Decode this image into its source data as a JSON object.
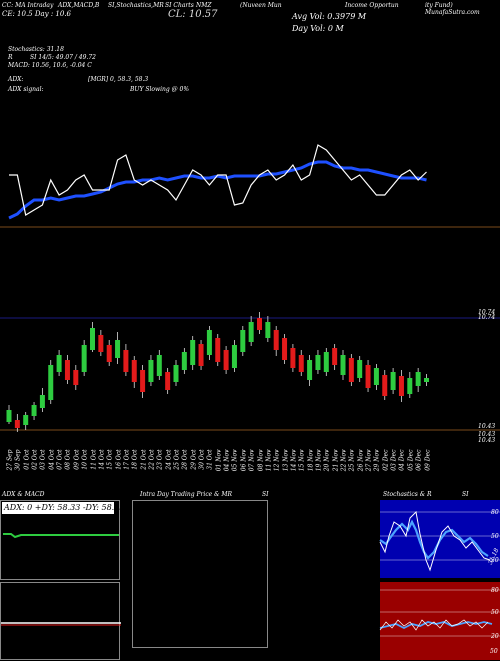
{
  "header": {
    "line1_col1": "CC: MA Intraday",
    "line1_col2": "ADX,MACD,B",
    "line1_col3": "SI,Stochastics,MR",
    "line1_col4": "SI Charts",
    "line1_col5": "NMZ",
    "line1_col6": "(Nuveen Mun",
    "line1_col7": "Income Opportun",
    "line1_col8": "ity Fund) MunafaSutra.com",
    "line2_left": "CE: 10.5   Day : 10.6",
    "cl": "CL: 10.57",
    "avg_vol": "Avg Vol: 0.3979 M",
    "day_vol": "Day Vol: 0   M"
  },
  "indicators": {
    "stochastics": "Stochastics: 31.18",
    "rsi": "SI 14/5: 49.07 / 49.72",
    "rsi_prefix": "R",
    "macd": "MACD: 10.56,  10.6,  -0.04  C",
    "adx": "ADX:",
    "adx_vals": "[MGR] 0,  58.3,  58.3",
    "adx_signal": "ADX  signal:",
    "buy_signal": "BUY Slowing @ 0%"
  },
  "price_axis": {
    "top_label": "10.74",
    "top_label2": "10.74",
    "low_label": "10.43",
    "low_label2": "10.43",
    "low_label3": "10.43"
  },
  "dates": [
    "27 Sep",
    "30 Sep",
    "01 Oct",
    "02 Oct",
    "03 Oct",
    "04 Oct",
    "07 Oct",
    "08 Oct",
    "09 Oct",
    "10 Oct",
    "11 Oct",
    "14 Oct",
    "15 Oct",
    "16 Oct",
    "17 Oct",
    "18 Oct",
    "21 Oct",
    "22 Oct",
    "23 Oct",
    "24 Oct",
    "25 Oct",
    "28 Oct",
    "29 Oct",
    "30 Oct",
    "31 Oct",
    "01 Nov",
    "04 Nov",
    "05 Nov",
    "06 Nov",
    "07 Nov",
    "08 Nov",
    "11 Nov",
    "12 Nov",
    "13 Nov",
    "14 Nov",
    "15 Nov",
    "18 Nov",
    "19 Nov",
    "20 Nov",
    "21 Nov",
    "22 Nov",
    "25 Nov",
    "26 Nov",
    "27 Nov",
    "29 Nov",
    "02 Dec",
    "03 Dec",
    "04 Dec",
    "05 Dec",
    "06 Dec",
    "09 Dec"
  ],
  "panels": {
    "adx_title": "ADX  & MACD",
    "adx_readout": "ADX: 0   +DY: 58.33  -DY: 58.33",
    "intraday_title": "Intra  Day Trading Price  & MR",
    "intraday_title2": "SI",
    "stoch_title": "Stochastics & R",
    "stoch_title2": "SI",
    "stoch_ticks": [
      "80",
      "50",
      "20"
    ],
    "stoch_value": "31.18",
    "rsi_ticks": [
      "80",
      "50",
      "20"
    ],
    "rsi_value": "50"
  },
  "colors": {
    "background": "#000000",
    "ma_line": "#1e50ff",
    "bull": "#2ecc40",
    "bear": "#e31b1b",
    "level_line": "#7a4a1a",
    "stoch_bg": "#0000b0",
    "rsi_bg": "#9a0000"
  }
}
